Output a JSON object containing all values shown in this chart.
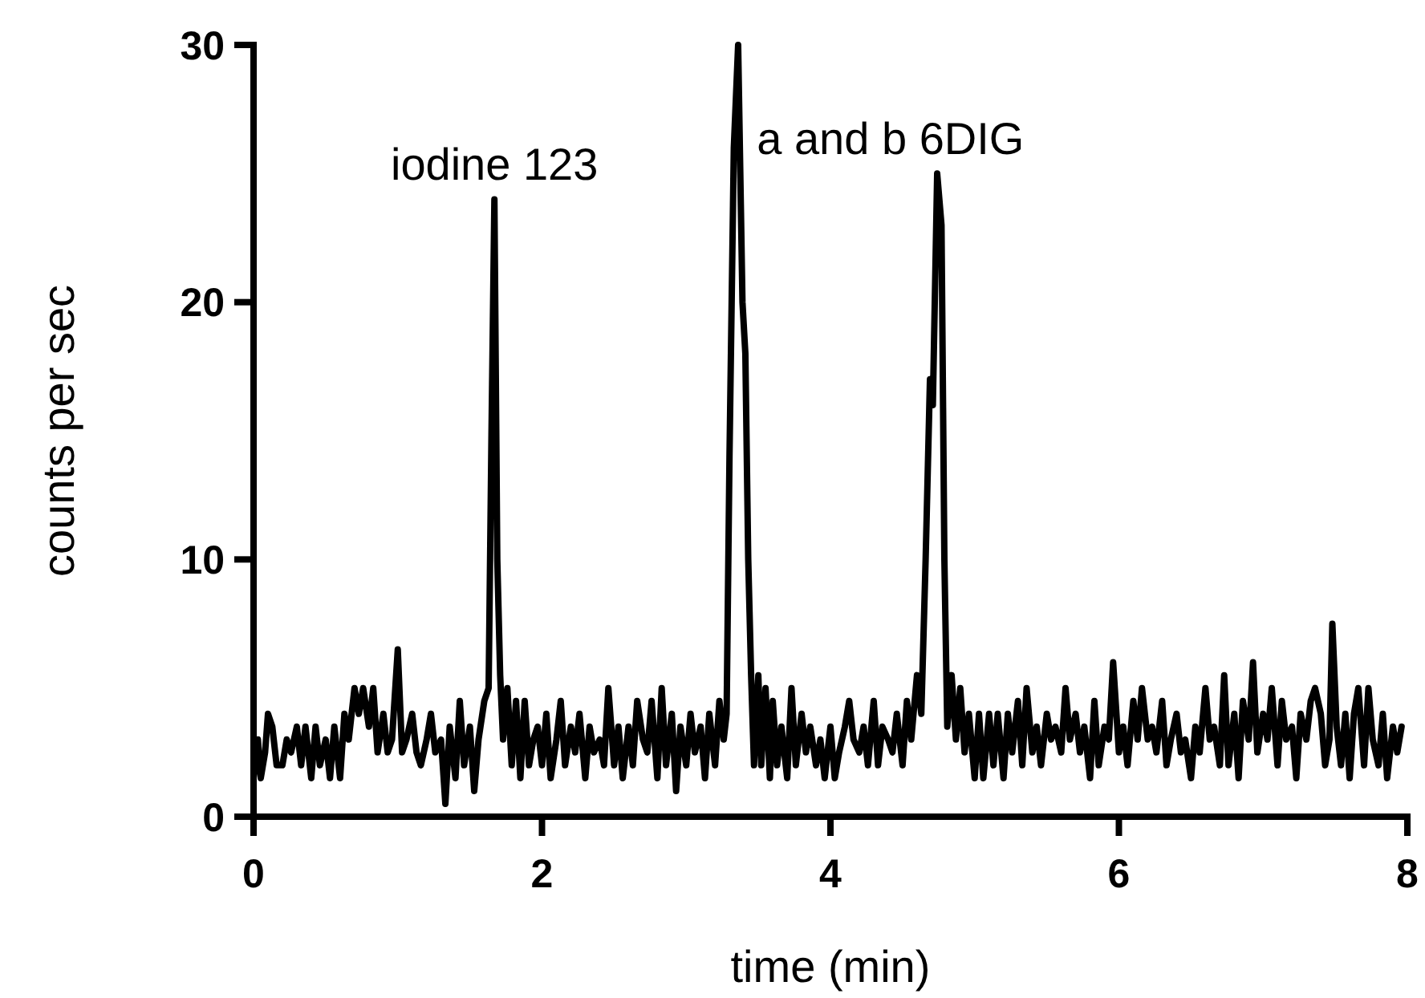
{
  "chart_data": {
    "type": "line",
    "xlabel": "time (min)",
    "ylabel": "counts per sec",
    "xlim": [
      0,
      8
    ],
    "xticks": [
      0,
      2,
      4,
      6,
      8
    ],
    "ylim": [
      0,
      30
    ],
    "yticks": [
      0,
      10,
      20,
      30
    ],
    "grid": false,
    "marker": "none",
    "line_style": "solid",
    "annotations": [
      {
        "text": "iodine 123",
        "x": 1.67,
        "y": 24
      },
      {
        "text": "a and b 6DIG",
        "x": 4.75,
        "y": 25
      }
    ],
    "series": [
      {
        "color": "#000000",
        "x": [
          0,
          0.03,
          0.05,
          0.08,
          0.1,
          0.13,
          0.16,
          0.2,
          0.23,
          0.26,
          0.3,
          0.33,
          0.36,
          0.4,
          0.43,
          0.46,
          0.5,
          0.53,
          0.56,
          0.6,
          0.63,
          0.66,
          0.7,
          0.73,
          0.76,
          0.8,
          0.83,
          0.86,
          0.9,
          0.93,
          0.96,
          1.0,
          1.03,
          1.06,
          1.1,
          1.13,
          1.16,
          1.2,
          1.23,
          1.26,
          1.3,
          1.33,
          1.36,
          1.4,
          1.43,
          1.46,
          1.5,
          1.53,
          1.56,
          1.6,
          1.63,
          1.65,
          1.67,
          1.69,
          1.71,
          1.73,
          1.76,
          1.79,
          1.82,
          1.85,
          1.88,
          1.91,
          1.94,
          1.97,
          2.0,
          2.03,
          2.06,
          2.1,
          2.13,
          2.16,
          2.2,
          2.23,
          2.26,
          2.3,
          2.33,
          2.36,
          2.4,
          2.43,
          2.46,
          2.5,
          2.53,
          2.56,
          2.6,
          2.63,
          2.66,
          2.7,
          2.73,
          2.76,
          2.8,
          2.83,
          2.86,
          2.9,
          2.93,
          2.96,
          3.0,
          3.03,
          3.06,
          3.1,
          3.13,
          3.16,
          3.2,
          3.23,
          3.26,
          3.28,
          3.3,
          3.33,
          3.36,
          3.39,
          3.41,
          3.43,
          3.45,
          3.47,
          3.5,
          3.52,
          3.55,
          3.58,
          3.6,
          3.63,
          3.66,
          3.7,
          3.73,
          3.76,
          3.8,
          3.83,
          3.86,
          3.9,
          3.93,
          3.96,
          4.0,
          4.03,
          4.06,
          4.1,
          4.13,
          4.16,
          4.2,
          4.23,
          4.26,
          4.3,
          4.33,
          4.36,
          4.4,
          4.43,
          4.46,
          4.5,
          4.53,
          4.56,
          4.6,
          4.63,
          4.66,
          4.69,
          4.71,
          4.74,
          4.77,
          4.79,
          4.81,
          4.84,
          4.87,
          4.9,
          4.93,
          4.96,
          5.0,
          5.03,
          5.06,
          5.1,
          5.13,
          5.16,
          5.2,
          5.23,
          5.26,
          5.3,
          5.33,
          5.36,
          5.4,
          5.43,
          5.46,
          5.5,
          5.53,
          5.56,
          5.6,
          5.63,
          5.66,
          5.7,
          5.73,
          5.76,
          5.8,
          5.83,
          5.86,
          5.9,
          5.93,
          5.96,
          6.0,
          6.03,
          6.06,
          6.1,
          6.13,
          6.16,
          6.2,
          6.23,
          6.26,
          6.3,
          6.33,
          6.36,
          6.4,
          6.43,
          6.46,
          6.5,
          6.53,
          6.56,
          6.6,
          6.63,
          6.66,
          6.7,
          6.73,
          6.76,
          6.8,
          6.83,
          6.86,
          6.9,
          6.93,
          6.96,
          7.0,
          7.03,
          7.06,
          7.1,
          7.13,
          7.16,
          7.2,
          7.23,
          7.26,
          7.3,
          7.33,
          7.36,
          7.4,
          7.43,
          7.46,
          7.48,
          7.51,
          7.54,
          7.57,
          7.6,
          7.63,
          7.66,
          7.7,
          7.73,
          7.76,
          7.8,
          7.83,
          7.86,
          7.9,
          7.93,
          7.96
        ],
        "values": [
          1.5,
          3,
          1.5,
          2.5,
          4,
          3.5,
          2,
          2,
          3,
          2.5,
          3.5,
          2,
          3.5,
          1.5,
          3.5,
          2,
          3,
          1.5,
          3.5,
          1.5,
          4,
          3,
          5,
          4,
          5,
          3.5,
          5,
          2.5,
          4,
          2.5,
          3,
          6.5,
          2.5,
          3,
          4,
          2.5,
          2,
          3,
          4,
          2.5,
          3,
          0.5,
          3.5,
          1.5,
          4.5,
          2,
          3.5,
          1,
          3,
          4.5,
          5,
          15,
          24,
          10,
          5.5,
          3,
          5,
          2,
          4.5,
          1.5,
          4.5,
          2,
          3,
          3.5,
          2,
          4,
          1.5,
          3,
          4.5,
          2,
          3.5,
          2.5,
          4,
          1.5,
          3.5,
          2.5,
          3,
          2,
          5,
          2,
          3.5,
          1.5,
          3.5,
          2,
          4.5,
          3,
          2.5,
          4.5,
          1.5,
          5,
          2,
          4,
          1,
          3.5,
          2,
          4,
          2.5,
          3.5,
          1.5,
          4,
          2,
          4.5,
          3,
          4,
          14,
          26,
          30,
          20,
          18,
          10,
          5.5,
          2,
          5.5,
          2,
          5,
          1.5,
          4.5,
          2,
          3.5,
          1.5,
          5,
          2,
          4,
          2.5,
          3.5,
          2,
          3,
          1.5,
          3.5,
          1.5,
          2.5,
          3.5,
          4.5,
          3,
          2.5,
          3.5,
          2,
          4.5,
          2,
          3.5,
          3,
          2.5,
          4,
          2,
          4.5,
          3,
          5.5,
          4,
          10,
          17,
          16,
          25,
          23,
          10,
          3.5,
          5.5,
          3,
          5,
          2.5,
          4,
          1.5,
          4,
          1.5,
          4,
          2,
          4,
          1.5,
          4,
          2.5,
          4.5,
          2,
          5,
          2.5,
          3.5,
          2,
          4,
          3,
          3.5,
          2.5,
          5,
          3,
          4,
          2.5,
          3.5,
          1.5,
          4.5,
          2,
          3.5,
          3,
          6,
          2.5,
          3.5,
          2,
          4.5,
          3,
          5,
          3,
          3.5,
          2.5,
          4.5,
          2,
          3,
          4,
          2.5,
          3,
          1.5,
          3.5,
          2.5,
          5,
          3,
          3.5,
          2,
          5.5,
          2,
          4,
          1.5,
          4.5,
          3,
          6,
          2.5,
          4,
          3,
          5,
          2,
          4.5,
          3,
          3.5,
          1.5,
          4,
          3,
          4.5,
          5,
          4,
          2,
          3,
          7.5,
          3.5,
          2,
          4,
          1.5,
          4,
          5,
          2,
          5,
          3,
          2,
          4,
          1.5,
          3.5,
          2.5,
          3.5
        ]
      }
    ]
  }
}
